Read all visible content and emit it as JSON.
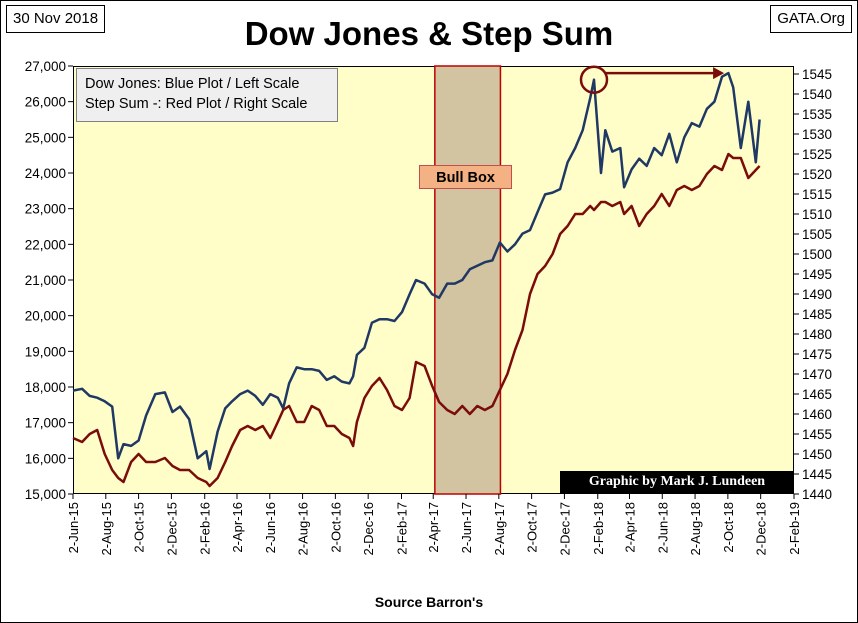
{
  "header": {
    "date": "30 Nov 2018",
    "title": "Dow Jones & Step Sum",
    "source": "GATA.Org"
  },
  "legend": {
    "line1": "Dow Jones: Blue Plot / Left Scale",
    "line2": "Step Sum -: Red Plot / Right Scale"
  },
  "annotation": {
    "bull_box_label": "Bull Box",
    "credit": "Graphic by Mark J. Lundeen"
  },
  "footer": {
    "xlabel": "Source Barron's"
  },
  "colors": {
    "plot_bg": "#fffec8",
    "dow_line": "#1f3864",
    "step_line": "#7b0c0c",
    "bull_box_fill": "#d2c4a0",
    "bull_box_border": "#c00000",
    "arrow": "#7b0c0c"
  },
  "chart_data": {
    "type": "line",
    "title": "Dow Jones & Step Sum",
    "xlabel": "Source Barron's",
    "ylabel": "",
    "x_ticks": [
      "2-Jun-15",
      "2-Aug-15",
      "2-Oct-15",
      "2-Dec-15",
      "2-Feb-16",
      "2-Apr-16",
      "2-Jun-16",
      "2-Aug-16",
      "2-Oct-16",
      "2-Dec-16",
      "2-Feb-17",
      "2-Apr-17",
      "2-Jun-17",
      "2-Aug-17",
      "2-Oct-17",
      "2-Dec-17",
      "2-Feb-18",
      "2-Apr-18",
      "2-Jun-18",
      "2-Aug-18",
      "2-Oct-18",
      "2-Dec-18",
      "2-Feb-19"
    ],
    "xlim": [
      "2015-06-02",
      "2019-02-02"
    ],
    "y_left": {
      "ylim": [
        15000,
        27000
      ],
      "ticks": [
        "15,000",
        "16,000",
        "17,000",
        "18,000",
        "19,000",
        "20,000",
        "21,000",
        "22,000",
        "23,000",
        "24,000",
        "25,000",
        "26,000",
        "27,000"
      ]
    },
    "y_right": {
      "ylim": [
        1440,
        1547
      ],
      "ticks": [
        "1440",
        "1445",
        "1450",
        "1455",
        "1460",
        "1465",
        "1470",
        "1475",
        "1480",
        "1485",
        "1490",
        "1495",
        "1500",
        "1505",
        "1510",
        "1515",
        "1520",
        "1525",
        "1530",
        "1535",
        "1540",
        "1545"
      ]
    },
    "grid": false,
    "legend": "top-left",
    "shaded_region": {
      "label": "Bull Box",
      "x_start": "2017-04-05",
      "x_end": "2017-08-05"
    },
    "highlight": {
      "shape": "circle",
      "x": "2018-01-26",
      "y": 26616
    },
    "arrow": {
      "from": [
        "2018-02-15",
        26800
      ],
      "to": [
        "2018-09-25",
        26800
      ]
    },
    "series": [
      {
        "name": "Dow Jones",
        "axis": "left",
        "x": [
          "2015-06-02",
          "2015-06-19",
          "2015-07-03",
          "2015-07-17",
          "2015-07-31",
          "2015-08-14",
          "2015-08-25",
          "2015-09-04",
          "2015-09-18",
          "2015-10-02",
          "2015-10-16",
          "2015-11-02",
          "2015-11-20",
          "2015-12-04",
          "2015-12-18",
          "2016-01-04",
          "2016-01-20",
          "2016-02-05",
          "2016-02-11",
          "2016-02-26",
          "2016-03-11",
          "2016-03-24",
          "2016-04-08",
          "2016-04-22",
          "2016-05-06",
          "2016-05-20",
          "2016-06-03",
          "2016-06-17",
          "2016-06-27",
          "2016-07-08",
          "2016-07-22",
          "2016-08-05",
          "2016-08-19",
          "2016-09-02",
          "2016-09-16",
          "2016-09-30",
          "2016-10-14",
          "2016-10-28",
          "2016-11-04",
          "2016-11-11",
          "2016-11-25",
          "2016-12-09",
          "2016-12-23",
          "2017-01-06",
          "2017-01-20",
          "2017-02-03",
          "2017-02-17",
          "2017-03-01",
          "2017-03-17",
          "2017-03-31",
          "2017-04-13",
          "2017-04-28",
          "2017-05-12",
          "2017-05-26",
          "2017-06-09",
          "2017-06-23",
          "2017-07-07",
          "2017-07-21",
          "2017-08-04",
          "2017-08-18",
          "2017-09-01",
          "2017-09-15",
          "2017-09-29",
          "2017-10-13",
          "2017-10-27",
          "2017-11-10",
          "2017-11-24",
          "2017-12-08",
          "2017-12-22",
          "2018-01-05",
          "2018-01-19",
          "2018-01-26",
          "2018-02-08",
          "2018-02-16",
          "2018-03-01",
          "2018-03-16",
          "2018-03-23",
          "2018-04-06",
          "2018-04-20",
          "2018-05-04",
          "2018-05-18",
          "2018-06-01",
          "2018-06-15",
          "2018-06-29",
          "2018-07-13",
          "2018-07-27",
          "2018-08-10",
          "2018-08-24",
          "2018-09-07",
          "2018-09-21",
          "2018-10-03",
          "2018-10-12",
          "2018-10-26",
          "2018-11-09",
          "2018-11-23",
          "2018-11-30"
        ],
        "values": [
          17900,
          17950,
          17750,
          17700,
          17600,
          17450,
          16000,
          16400,
          16350,
          16500,
          17200,
          17800,
          17850,
          17300,
          17450,
          17100,
          16000,
          16200,
          15700,
          16750,
          17400,
          17600,
          17800,
          17900,
          17750,
          17500,
          17800,
          17700,
          17400,
          18100,
          18550,
          18500,
          18500,
          18450,
          18200,
          18300,
          18150,
          18100,
          18300,
          18900,
          19100,
          19800,
          19900,
          19900,
          19850,
          20100,
          20600,
          21000,
          20900,
          20600,
          20500,
          20900,
          20900,
          21000,
          21300,
          21400,
          21500,
          21550,
          22050,
          21800,
          22000,
          22300,
          22400,
          22900,
          23400,
          23450,
          23550,
          24300,
          24700,
          25200,
          26100,
          26616,
          24000,
          25200,
          24600,
          24700,
          23600,
          24100,
          24400,
          24200,
          24700,
          24500,
          25100,
          24300,
          25000,
          25400,
          25300,
          25800,
          26000,
          26700,
          26800,
          26400,
          24700,
          26000,
          24300,
          25500
        ]
      },
      {
        "name": "Step Sum -",
        "axis": "right",
        "x": [
          "2015-06-02",
          "2015-06-19",
          "2015-07-03",
          "2015-07-17",
          "2015-07-31",
          "2015-08-14",
          "2015-08-25",
          "2015-09-04",
          "2015-09-18",
          "2015-10-02",
          "2015-10-16",
          "2015-11-02",
          "2015-11-20",
          "2015-12-04",
          "2015-12-18",
          "2016-01-04",
          "2016-01-20",
          "2016-02-05",
          "2016-02-11",
          "2016-02-26",
          "2016-03-11",
          "2016-03-24",
          "2016-04-08",
          "2016-04-22",
          "2016-05-06",
          "2016-05-20",
          "2016-06-03",
          "2016-06-17",
          "2016-06-27",
          "2016-07-08",
          "2016-07-22",
          "2016-08-05",
          "2016-08-19",
          "2016-09-02",
          "2016-09-16",
          "2016-09-30",
          "2016-10-14",
          "2016-10-28",
          "2016-11-04",
          "2016-11-11",
          "2016-11-25",
          "2016-12-09",
          "2016-12-23",
          "2017-01-06",
          "2017-01-20",
          "2017-02-03",
          "2017-02-17",
          "2017-03-01",
          "2017-03-17",
          "2017-03-31",
          "2017-04-13",
          "2017-04-28",
          "2017-05-12",
          "2017-05-26",
          "2017-06-09",
          "2017-06-23",
          "2017-07-07",
          "2017-07-21",
          "2017-08-04",
          "2017-08-18",
          "2017-09-01",
          "2017-09-15",
          "2017-09-29",
          "2017-10-13",
          "2017-10-27",
          "2017-11-10",
          "2017-11-24",
          "2017-12-08",
          "2017-12-22",
          "2018-01-05",
          "2018-01-19",
          "2018-01-26",
          "2018-02-08",
          "2018-02-16",
          "2018-03-01",
          "2018-03-16",
          "2018-03-23",
          "2018-04-06",
          "2018-04-20",
          "2018-05-04",
          "2018-05-18",
          "2018-06-01",
          "2018-06-15",
          "2018-06-29",
          "2018-07-13",
          "2018-07-27",
          "2018-08-10",
          "2018-08-24",
          "2018-09-07",
          "2018-09-21",
          "2018-10-03",
          "2018-10-12",
          "2018-10-26",
          "2018-11-09",
          "2018-11-23",
          "2018-11-30"
        ],
        "values": [
          1454,
          1453,
          1455,
          1456,
          1450,
          1446,
          1444,
          1443,
          1448,
          1450,
          1448,
          1448,
          1449,
          1447,
          1446,
          1446,
          1444,
          1443,
          1442,
          1444,
          1448,
          1452,
          1456,
          1457,
          1456,
          1457,
          1454,
          1458,
          1461,
          1462,
          1458,
          1458,
          1462,
          1461,
          1457,
          1457,
          1455,
          1454,
          1452,
          1458,
          1464,
          1467,
          1469,
          1466,
          1462,
          1461,
          1464,
          1473,
          1472,
          1467,
          1463,
          1461,
          1460,
          1462,
          1460,
          1462,
          1461,
          1462,
          1466,
          1470,
          1476,
          1481,
          1490,
          1495,
          1497,
          1500,
          1505,
          1507,
          1510,
          1510,
          1512,
          1511,
          1513,
          1513,
          1512,
          1513,
          1510,
          1512,
          1507,
          1510,
          1512,
          1515,
          1512,
          1516,
          1517,
          1516,
          1517,
          1520,
          1522,
          1521,
          1525,
          1524,
          1524,
          1519,
          1521,
          1522
        ]
      }
    ]
  }
}
